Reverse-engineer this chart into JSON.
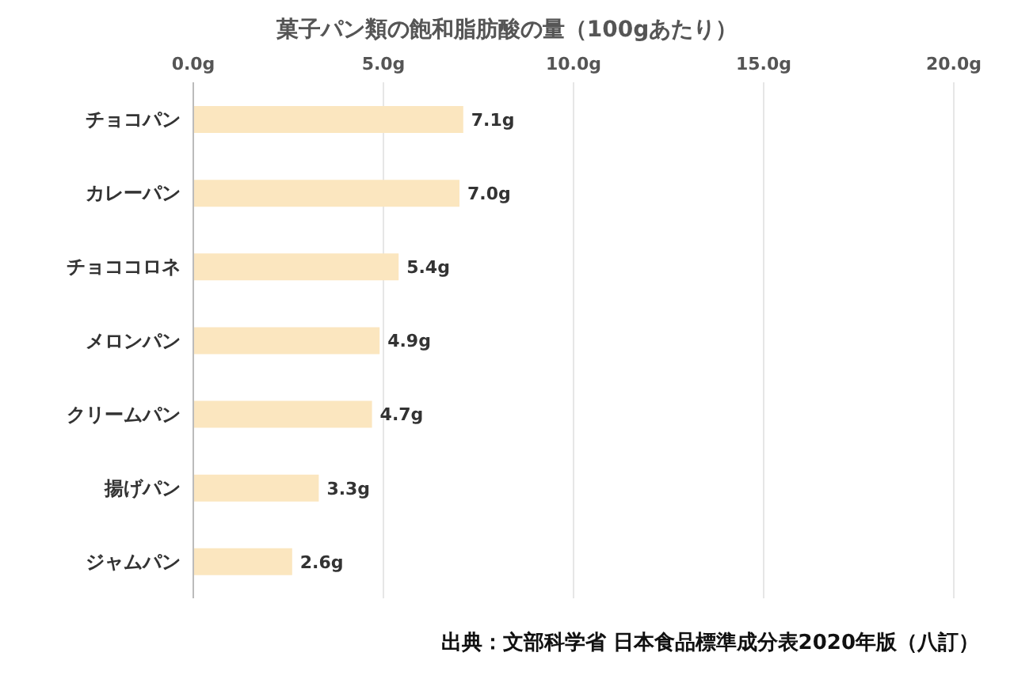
{
  "chart_data": {
    "type": "bar",
    "orientation": "horizontal",
    "title": "菓子パン類の飽和脂肪酸の量（100gあたり）",
    "categories": [
      "チョコパン",
      "カレーパン",
      "チョココロネ",
      "メロンパン",
      "クリームパン",
      "揚げパン",
      "ジャムパン"
    ],
    "values": [
      7.1,
      7.0,
      5.4,
      4.9,
      4.7,
      3.3,
      2.6
    ],
    "value_labels": [
      "7.1g",
      "7.0g",
      "5.4g",
      "4.9g",
      "4.7g",
      "3.3g",
      "2.6g"
    ],
    "color": "#fbe6bf",
    "xlim": [
      0,
      20
    ],
    "xticks": [
      {
        "value": 0,
        "label": "0.0g"
      },
      {
        "value": 5,
        "label": "5.0g"
      },
      {
        "value": 10,
        "label": "10.0g"
      },
      {
        "value": 15,
        "label": "15.0g"
      },
      {
        "value": 20,
        "label": "20.0g"
      }
    ],
    "grid": "x",
    "legend": false,
    "annotations": [
      "出典：文部科学省 日本食品標準成分表2020年版（八訂）"
    ]
  }
}
